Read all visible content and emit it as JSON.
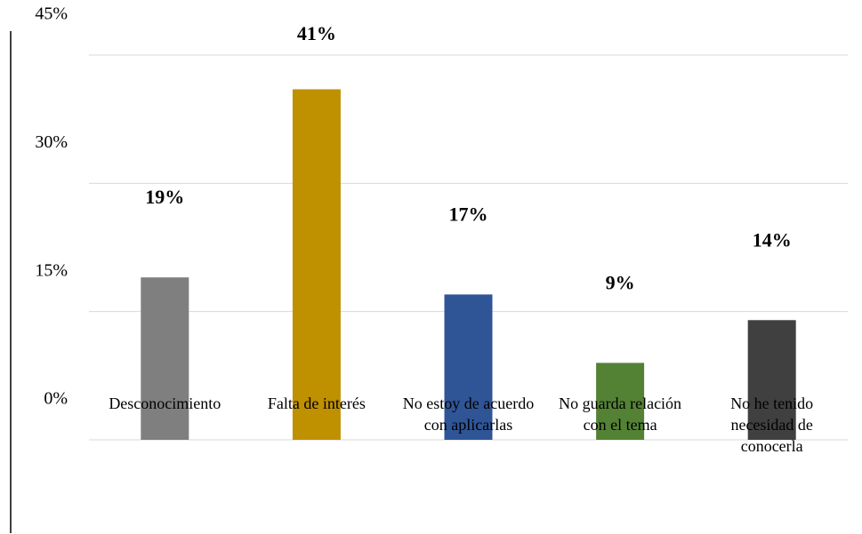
{
  "chart_data": {
    "type": "bar",
    "categories": [
      "Desconocimiento",
      "Falta de interés",
      "No estoy de acuerdo con aplicarlas",
      "No guarda relación con el tema",
      "No he tenido necesidad de conocerla"
    ],
    "values": [
      19,
      41,
      17,
      9,
      14
    ],
    "value_labels": [
      "19%",
      "41%",
      "17%",
      "9%",
      "14%"
    ],
    "colors": [
      "#7f7f7f",
      "#bf9000",
      "#2f5597",
      "#548235",
      "#404040"
    ],
    "ylim": [
      0,
      45
    ],
    "yticks": [
      {
        "value": 0,
        "label": "0%"
      },
      {
        "value": 15,
        "label": "15%"
      },
      {
        "value": 30,
        "label": "30%"
      },
      {
        "value": 45,
        "label": "45%"
      }
    ],
    "grid": true
  }
}
